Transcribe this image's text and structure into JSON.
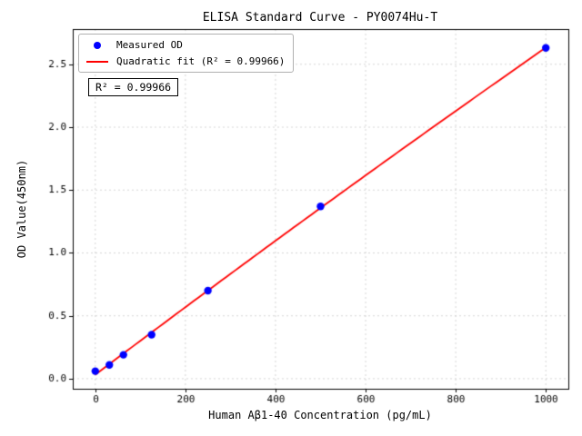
{
  "chart_data": {
    "type": "scatter",
    "title": "ELISA Standard Curve - PY0074Hu-T",
    "xlabel": "Human Aβ1-40 Concentration (pg/mL)",
    "ylabel": "OD Value(450nm)",
    "xlim": [
      -50,
      1050
    ],
    "ylim": [
      -0.08,
      2.78
    ],
    "x_ticks": [
      0,
      200,
      400,
      600,
      800,
      1000
    ],
    "y_ticks": [
      0.0,
      0.5,
      1.0,
      1.5,
      2.0,
      2.5
    ],
    "grid": true,
    "grid_color": "#c9c9c9",
    "legend_position": "upper left",
    "series": [
      {
        "name": "Measured OD",
        "type": "scatter",
        "color": "#0000ff",
        "x": [
          0,
          31.25,
          62.5,
          125,
          250,
          500,
          1000
        ],
        "y": [
          0.06,
          0.11,
          0.19,
          0.35,
          0.7,
          1.37,
          2.63
        ]
      },
      {
        "name": "Quadratic fit (R² = 0.99966)",
        "type": "line",
        "color": "#ff0000"
      }
    ],
    "annotation": "R² = 0.99966",
    "r_squared": 0.99966
  }
}
